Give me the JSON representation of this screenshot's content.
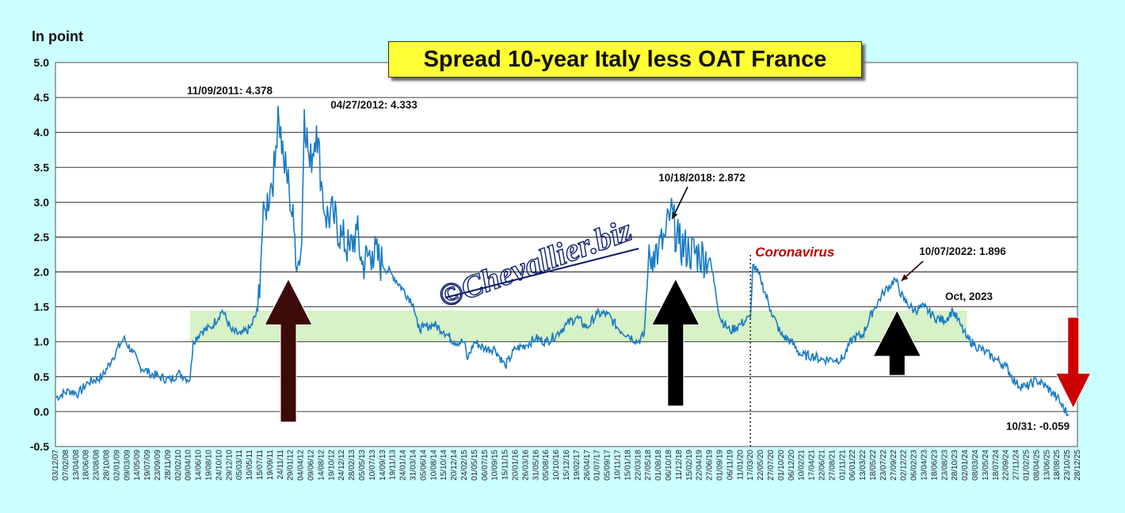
{
  "chart_data": {
    "type": "line",
    "title": "Spread 10-year Italy less OAT France",
    "ylabel": "In point",
    "ylim": [
      -0.5,
      5.0
    ],
    "yticks": [
      "5.0",
      "4.5",
      "4.0",
      "3.5",
      "3.0",
      "2.5",
      "2.0",
      "1.5",
      "1.0",
      "0.5",
      "0.0",
      "-0.5"
    ],
    "xlim": [
      "2007-12-03",
      "2025-12-28"
    ],
    "x_tick_labels": [
      "03/12/07",
      "07/02/08",
      "13/04/08",
      "18/06/08",
      "23/08/08",
      "28/10/08",
      "02/01/09",
      "09/03/09",
      "14/05/09",
      "19/07/09",
      "23/09/09",
      "28/11/09",
      "02/02/10",
      "09/04/10",
      "14/06/10",
      "19/08/10",
      "24/10/10",
      "29/12/10",
      "05/03/11",
      "10/05/11",
      "15/07/11",
      "19/09/11",
      "24/11/11",
      "29/01/12",
      "04/04/12",
      "09/06/12",
      "14/08/12",
      "19/10/12",
      "24/12/12",
      "28/02/13",
      "05/05/13",
      "10/07/13",
      "14/09/13",
      "19/11/13",
      "24/01/14",
      "31/03/14",
      "05/06/14",
      "10/08/14",
      "15/10/14",
      "20/12/14",
      "24/02/15",
      "01/05/15",
      "06/07/15",
      "10/09/15",
      "15/11/15",
      "20/01/16",
      "26/03/16",
      "31/05/16",
      "05/08/16",
      "10/10/16",
      "15/12/16",
      "19/02/17",
      "26/04/17",
      "01/07/17",
      "05/09/17",
      "10/11/17",
      "15/01/18",
      "22/03/18",
      "27/05/18",
      "01/08/18",
      "06/10/18",
      "11/12/18",
      "15/02/19",
      "22/04/19",
      "27/06/19",
      "01/09/19",
      "06/11/19",
      "11/01/20",
      "17/03/20",
      "22/05/20",
      "27/07/20",
      "01/10/20",
      "06/12/20",
      "10/02/21",
      "17/04/21",
      "22/06/21",
      "27/08/21",
      "01/11/21",
      "06/01/22",
      "13/03/22",
      "18/05/22",
      "23/07/22",
      "27/09/22",
      "02/12/22",
      "06/02/23",
      "13/04/23",
      "18/06/23",
      "23/08/23",
      "28/10/23",
      "02/01/24",
      "08/03/24",
      "13/05/24",
      "18/07/24",
      "22/09/24",
      "27/11/24",
      "01/02/25",
      "08/04/25",
      "13/06/25",
      "18/08/25",
      "23/10/25",
      "28/12/25"
    ],
    "series": [
      {
        "values_note": "",
        "points": [
          [
            "2007-12-03",
            0.2
          ],
          [
            "2008-03-01",
            0.3
          ],
          [
            "2008-05-01",
            0.26
          ],
          [
            "2008-07-01",
            0.42
          ],
          [
            "2008-10-01",
            0.5
          ],
          [
            "2008-12-01",
            0.75
          ],
          [
            "2009-02-15",
            1.05
          ],
          [
            "2009-04-15",
            0.85
          ],
          [
            "2009-06-01",
            0.65
          ],
          [
            "2009-08-01",
            0.55
          ],
          [
            "2009-10-01",
            0.5
          ],
          [
            "2009-12-15",
            0.45
          ],
          [
            "2010-02-01",
            0.55
          ],
          [
            "2010-03-15",
            0.5
          ],
          [
            "2010-04-20",
            0.45
          ],
          [
            "2010-05-10",
            1.0
          ],
          [
            "2010-07-01",
            1.15
          ],
          [
            "2010-09-01",
            1.2
          ],
          [
            "2010-11-15",
            1.45
          ],
          [
            "2011-01-15",
            1.15
          ],
          [
            "2011-03-15",
            1.1
          ],
          [
            "2011-05-15",
            1.2
          ],
          [
            "2011-07-01",
            1.45
          ],
          [
            "2011-08-01",
            2.6
          ],
          [
            "2011-08-20",
            2.9
          ],
          [
            "2011-09-20",
            3.2
          ],
          [
            "2011-10-20",
            3.5
          ],
          [
            "2011-11-09",
            4.378
          ],
          [
            "2011-12-15",
            3.6
          ],
          [
            "2012-01-20",
            3.2
          ],
          [
            "2012-02-20",
            2.6
          ],
          [
            "2012-03-15",
            2.1
          ],
          [
            "2012-04-10",
            2.4
          ],
          [
            "2012-04-27",
            4.333
          ],
          [
            "2012-06-01",
            3.5
          ],
          [
            "2012-07-15",
            4.1
          ],
          [
            "2012-08-15",
            3.3
          ],
          [
            "2012-09-10",
            2.8
          ],
          [
            "2012-11-01",
            2.8
          ],
          [
            "2012-12-24",
            2.5
          ],
          [
            "2013-02-15",
            2.3
          ],
          [
            "2013-04-01",
            2.6
          ],
          [
            "2013-05-05",
            2.1
          ],
          [
            "2013-07-10",
            2.3
          ],
          [
            "2013-09-14",
            2.1
          ],
          [
            "2013-11-19",
            1.95
          ],
          [
            "2014-01-24",
            1.75
          ],
          [
            "2014-03-31",
            1.55
          ],
          [
            "2014-05-01",
            1.2
          ],
          [
            "2014-06-05",
            1.2
          ],
          [
            "2014-08-10",
            1.25
          ],
          [
            "2014-10-15",
            1.15
          ],
          [
            "2014-12-20",
            1.0
          ],
          [
            "2015-02-24",
            1.0
          ],
          [
            "2015-03-15",
            0.75
          ],
          [
            "2015-05-01",
            1.0
          ],
          [
            "2015-07-06",
            0.9
          ],
          [
            "2015-09-10",
            0.9
          ],
          [
            "2015-11-15",
            0.65
          ],
          [
            "2016-01-20",
            0.9
          ],
          [
            "2016-03-26",
            0.95
          ],
          [
            "2016-05-31",
            1.05
          ],
          [
            "2016-08-05",
            1.0
          ],
          [
            "2016-10-10",
            1.1
          ],
          [
            "2016-12-15",
            1.25
          ],
          [
            "2017-02-19",
            1.35
          ],
          [
            "2017-04-26",
            1.2
          ],
          [
            "2017-07-01",
            1.4
          ],
          [
            "2017-09-05",
            1.4
          ],
          [
            "2017-11-10",
            1.2
          ],
          [
            "2018-01-15",
            1.1
          ],
          [
            "2018-03-22",
            1.0
          ],
          [
            "2018-05-01",
            1.1
          ],
          [
            "2018-05-27",
            2.1
          ],
          [
            "2018-07-01",
            2.3
          ],
          [
            "2018-08-01",
            2.3
          ],
          [
            "2018-09-15",
            2.5
          ],
          [
            "2018-10-18",
            2.872
          ],
          [
            "2018-12-11",
            2.4
          ],
          [
            "2019-02-15",
            2.3
          ],
          [
            "2019-04-22",
            2.25
          ],
          [
            "2019-06-27",
            2.2
          ],
          [
            "2019-08-01",
            1.8
          ],
          [
            "2019-09-01",
            1.35
          ],
          [
            "2019-11-06",
            1.15
          ],
          [
            "2020-01-11",
            1.25
          ],
          [
            "2020-03-17",
            1.35
          ],
          [
            "2020-04-01",
            2.1
          ],
          [
            "2020-05-22",
            1.9
          ],
          [
            "2020-07-27",
            1.45
          ],
          [
            "2020-10-01",
            1.1
          ],
          [
            "2020-12-06",
            1.0
          ],
          [
            "2021-02-10",
            0.8
          ],
          [
            "2021-04-17",
            0.8
          ],
          [
            "2021-06-22",
            0.75
          ],
          [
            "2021-08-27",
            0.75
          ],
          [
            "2021-11-01",
            0.75
          ],
          [
            "2022-01-06",
            1.05
          ],
          [
            "2022-03-13",
            1.1
          ],
          [
            "2022-05-18",
            1.45
          ],
          [
            "2022-07-23",
            1.7
          ],
          [
            "2022-10-07",
            1.896
          ],
          [
            "2022-12-02",
            1.6
          ],
          [
            "2023-02-06",
            1.45
          ],
          [
            "2023-04-13",
            1.5
          ],
          [
            "2023-06-18",
            1.35
          ],
          [
            "2023-08-23",
            1.3
          ],
          [
            "2023-10-15",
            1.45
          ],
          [
            "2023-12-01",
            1.25
          ],
          [
            "2024-01-15",
            1.05
          ],
          [
            "2024-03-08",
            0.95
          ],
          [
            "2024-05-13",
            0.85
          ],
          [
            "2024-07-18",
            0.75
          ],
          [
            "2024-09-22",
            0.65
          ],
          [
            "2024-11-27",
            0.4
          ],
          [
            "2025-02-01",
            0.35
          ],
          [
            "2025-04-08",
            0.45
          ],
          [
            "2025-06-13",
            0.35
          ],
          [
            "2025-08-18",
            0.2
          ],
          [
            "2025-10-31",
            -0.059
          ]
        ]
      }
    ],
    "band": {
      "from": 1.0,
      "to": 1.45,
      "x_start": "2010-04-20",
      "x_end": "2024-01-15"
    },
    "event_line": {
      "date": "2020-03-17",
      "label": "Coronavirus"
    },
    "annotations": [
      {
        "text": "11/09/2011: 4.378",
        "date": "2011-11-09",
        "value": 4.378
      },
      {
        "text": "04/27/2012: 4.333",
        "date": "2012-04-27",
        "value": 4.333
      },
      {
        "text": "10/18/2018: 2.872",
        "date": "2018-10-18",
        "value": 2.872
      },
      {
        "text": "10/07/2022: 1.896",
        "date": "2022-10-07",
        "value": 1.896
      },
      {
        "text": "Oct, 2023",
        "date": "2023-10-15",
        "value": 1.45
      },
      {
        "text": "10/31: -0.059",
        "date": "2025-10-31",
        "value": -0.059
      }
    ],
    "big_arrows": [
      {
        "direction": "up",
        "date": "2012-01-15",
        "top": 1.9,
        "bottom": -0.15,
        "color": "#3d0a0a"
      },
      {
        "direction": "up",
        "date": "2018-11-20",
        "top": 1.9,
        "bottom": 0.08,
        "color": "#000000"
      },
      {
        "direction": "up",
        "date": "2022-10-20",
        "top": 1.45,
        "bottom": 0.52,
        "color": "#000000"
      },
      {
        "direction": "down",
        "date": "2025-12-01",
        "top": 1.35,
        "bottom": 0.05,
        "color": "#cc0000"
      }
    ],
    "grid": true
  },
  "watermark": "©Chevallier.biz",
  "colors": {
    "line": "#1a7bc4",
    "band": "#d6f2c6",
    "background": "#ccffff"
  }
}
